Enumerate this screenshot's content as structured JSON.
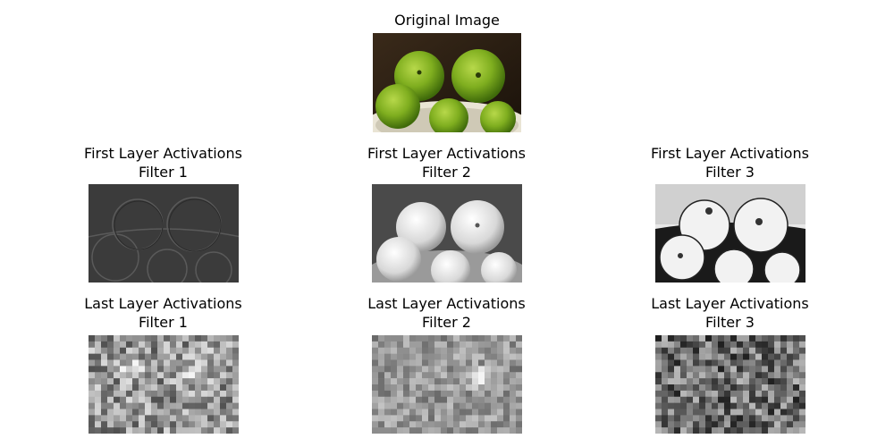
{
  "figure": {
    "original": {
      "title": "Original Image"
    },
    "panels": [
      {
        "title_line1": "First Layer Activations",
        "title_line2": "Filter 1"
      },
      {
        "title_line1": "First Layer Activations",
        "title_line2": "Filter 2"
      },
      {
        "title_line1": "First Layer Activations",
        "title_line2": "Filter 3"
      },
      {
        "title_line1": "Last Layer Activations",
        "title_line2": "Filter 1"
      },
      {
        "title_line1": "Last Layer Activations",
        "title_line2": "Filter 2"
      },
      {
        "title_line1": "Last Layer Activations",
        "title_line2": "Filter 3"
      }
    ]
  }
}
